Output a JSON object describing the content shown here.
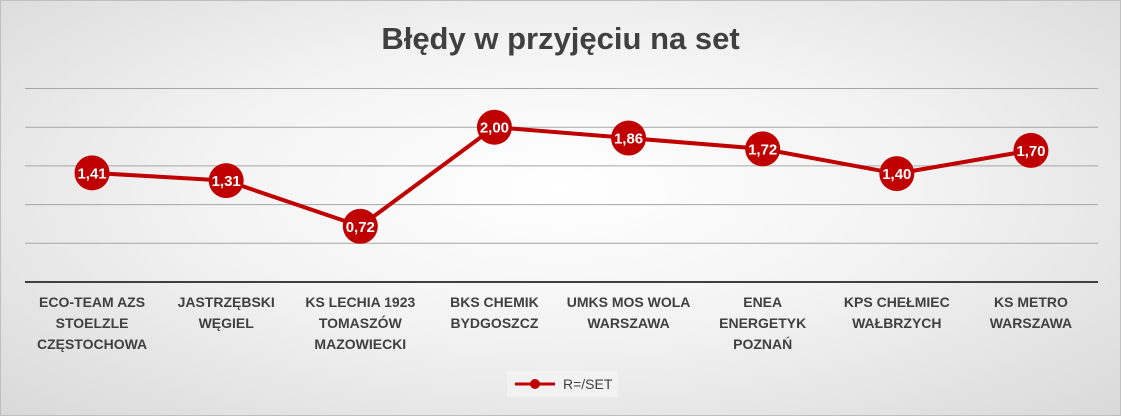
{
  "chart_data": {
    "type": "line",
    "title": "Błędy w przyjęciu na set",
    "categories": [
      "ECO-TEAM AZS STOELZLE CZĘSTOCHOWA",
      "JASTRZĘBSKI WĘGIEL",
      "KS LECHIA 1923 TOMASZÓW MAZOWIECKI",
      "BKS CHEMIK BYDGOSZCZ",
      "UMKS MOS WOLA WARSZAWA",
      "ENEA ENERGETYK POZNAŃ",
      "KPS CHEŁMIEC WAŁBRZYCH",
      "KS METRO WARSZAWA"
    ],
    "series": [
      {
        "name": "R=/SET",
        "values": [
          1.41,
          1.31,
          0.72,
          2.0,
          1.86,
          1.72,
          1.4,
          1.7
        ],
        "labels": [
          "1,41",
          "1,31",
          "0,72",
          "2,00",
          "1,86",
          "1,72",
          "1,40",
          "1,70"
        ]
      }
    ],
    "ylim": [
      0,
      2.5
    ],
    "y_gridlines": [
      0.5,
      1.0,
      1.5,
      2.0,
      2.5
    ],
    "y_axis_visible": false,
    "grid": true,
    "legend_position": "bottom",
    "colors": {
      "series": "#c00000",
      "marker": "#c00000",
      "grid": "#a6a6a6",
      "axis": "#404040",
      "text": "#404040"
    }
  }
}
